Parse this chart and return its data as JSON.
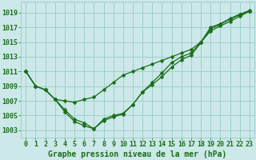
{
  "background_color": "#cce8e8",
  "grid_color": "#99cccc",
  "line_color": "#1a6e1a",
  "xlabel": "Graphe pression niveau de la mer (hPa)",
  "xlabel_fontsize": 7,
  "tick_fontsize": 6,
  "ytick_labels": [
    1003,
    1005,
    1007,
    1009,
    1011,
    1013,
    1015,
    1017,
    1019
  ],
  "ylim": [
    1002.0,
    1020.5
  ],
  "xlim": [
    -0.5,
    23.5
  ],
  "line1": [
    1011,
    1009,
    1008.5,
    1007.2,
    1007.0,
    1006.8,
    1007.2,
    1007.5,
    1008.5,
    1009.5,
    1010.5,
    1011.0,
    1011.5,
    1012.0,
    1012.5,
    1013.0,
    1013.5,
    1014.0,
    1015.0,
    1016.5,
    1017.2,
    1017.8,
    1018.5,
    1019.2
  ],
  "line2": [
    1011,
    1009,
    1008.5,
    1007.2,
    1005.8,
    1004.5,
    1004.0,
    1003.2,
    1004.3,
    1004.8,
    1005.2,
    1006.5,
    1008.2,
    1009.2,
    1010.3,
    1011.6,
    1012.6,
    1013.2,
    1014.9,
    1016.8,
    1017.4,
    1018.1,
    1018.7,
    1019.2
  ],
  "line3": [
    1011,
    1009,
    1008.5,
    1007.2,
    1005.5,
    1004.2,
    1003.6,
    1003.2,
    1004.5,
    1005.0,
    1005.3,
    1006.5,
    1008.2,
    1009.5,
    1010.8,
    1012.2,
    1013.0,
    1013.5,
    1015.0,
    1017.0,
    1017.5,
    1018.2,
    1018.8,
    1019.3
  ]
}
